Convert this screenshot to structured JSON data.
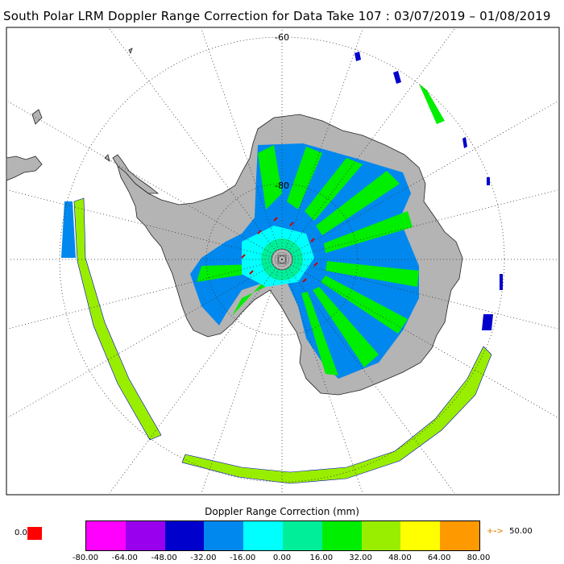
{
  "title": "South Polar LRM Doppler Range Correction for Data Take 107 : 03/07/2019 – 01/08/2019",
  "map": {
    "lat_labels": [
      "-60",
      "-80"
    ],
    "colors": {
      "ocean": "#ffffff",
      "land": "#b4b4b4",
      "coast": "#222222",
      "grid": "#333333",
      "frame": "#000000"
    }
  },
  "legend": {
    "title": "Doppler Range Correction (mm)",
    "nodata_label": "0.0",
    "nodata_color": "#ff0000",
    "colors": [
      "#ff00ff",
      "#9900ee",
      "#0000cc",
      "#0088ee",
      "#00ffff",
      "#00ee99",
      "#00ee00",
      "#99ee00",
      "#ffff00",
      "#ff9900"
    ],
    "ticks": [
      "-80.00",
      "-64.00",
      "-48.00",
      "-32.00",
      "-16.00",
      "0.00",
      "16.00",
      "32.00",
      "48.00",
      "64.00",
      "80.00"
    ],
    "arrow_glyph": "+->",
    "arrow_value": "50.00"
  }
}
